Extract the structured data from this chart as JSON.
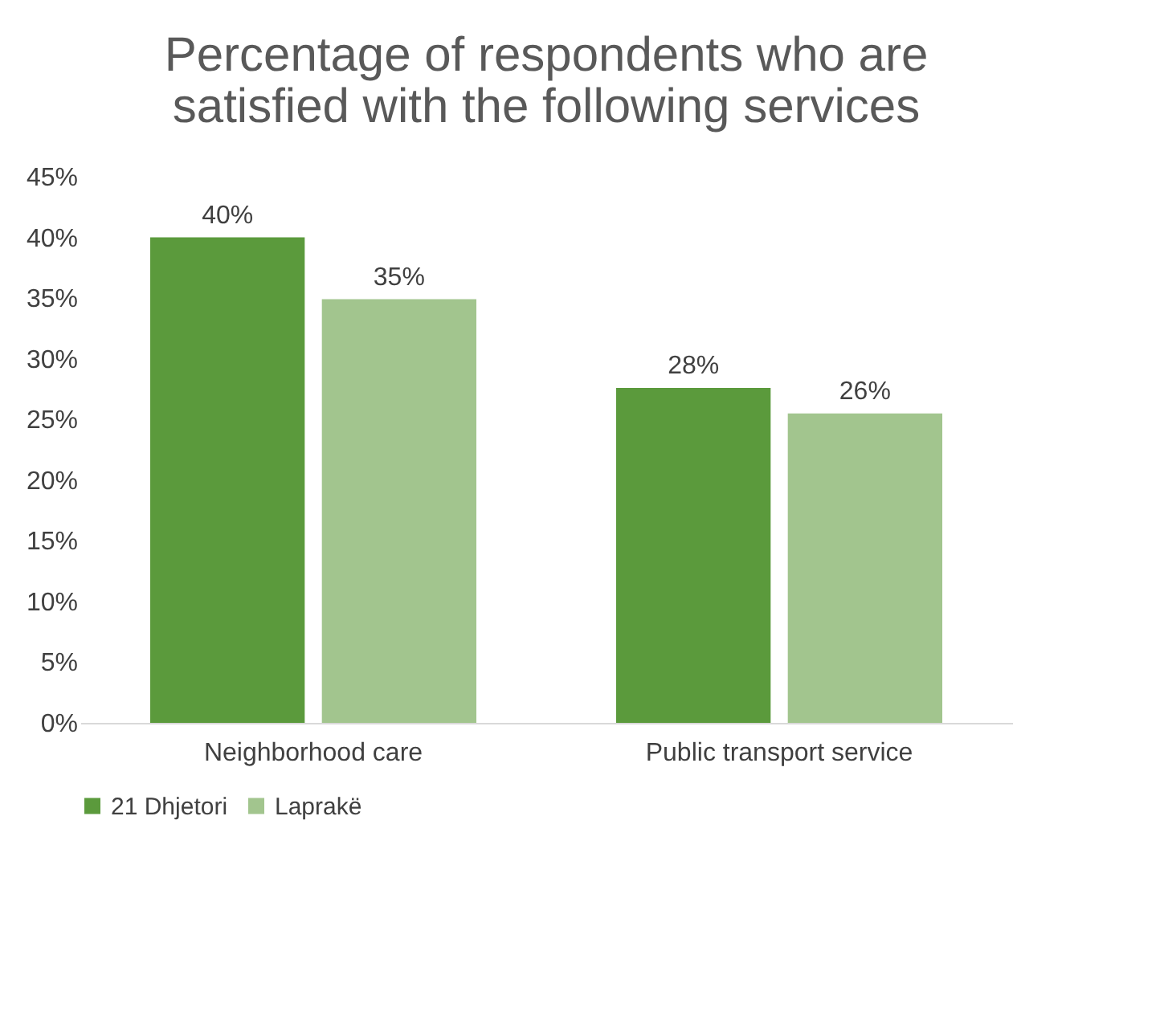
{
  "chart_data": {
    "type": "bar",
    "title": "Percentage of respondents who are satisfied with the following services",
    "categories": [
      "Neighborhood care",
      "Public transport service"
    ],
    "series": [
      {
        "name": "21 Dhjetori",
        "color": "#5b9a3c",
        "values": [
          40,
          27.6
        ],
        "value_labels": [
          "40%",
          "28%"
        ]
      },
      {
        "name": "Laprakë",
        "color": "#a2c58e",
        "values": [
          34.9,
          25.5
        ],
        "value_labels": [
          "35%",
          "26%"
        ]
      }
    ],
    "ylim": [
      0,
      45
    ],
    "yticks": [
      {
        "value": 0,
        "label": "0%"
      },
      {
        "value": 5,
        "label": "5%"
      },
      {
        "value": 10,
        "label": "10%"
      },
      {
        "value": 15,
        "label": "15%"
      },
      {
        "value": 20,
        "label": "20%"
      },
      {
        "value": 25,
        "label": "25%"
      },
      {
        "value": 30,
        "label": "30%"
      },
      {
        "value": 35,
        "label": "35%"
      },
      {
        "value": 40,
        "label": "40%"
      },
      {
        "value": 45,
        "label": "45%"
      }
    ],
    "grid": false,
    "legend": "bottom"
  }
}
